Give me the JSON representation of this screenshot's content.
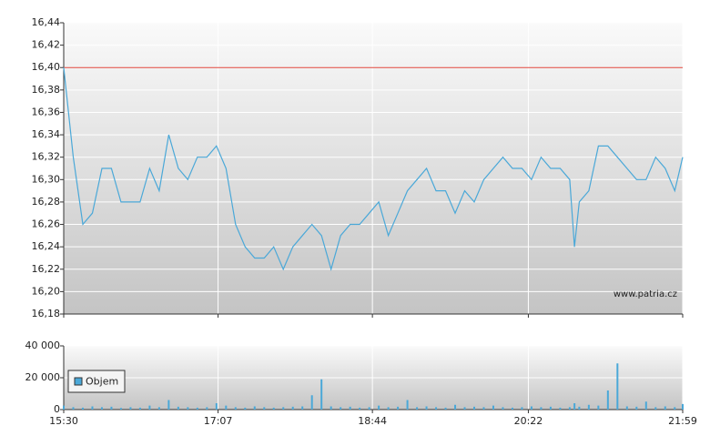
{
  "chart_data": [
    {
      "type": "line",
      "x": [
        "15:30",
        "15:36",
        "15:42",
        "15:48",
        "15:54",
        "16:00",
        "16:06",
        "16:12",
        "16:18",
        "16:24",
        "16:30",
        "16:36",
        "16:42",
        "16:48",
        "16:54",
        "17:00",
        "17:06",
        "17:12",
        "17:18",
        "17:24",
        "17:30",
        "17:36",
        "17:42",
        "17:48",
        "17:54",
        "18:00",
        "18:06",
        "18:12",
        "18:18",
        "18:24",
        "18:30",
        "18:36",
        "18:42",
        "18:48",
        "18:54",
        "19:00",
        "19:06",
        "19:12",
        "19:18",
        "19:24",
        "19:30",
        "19:36",
        "19:42",
        "19:48",
        "19:54",
        "20:00",
        "20:06",
        "20:12",
        "20:18",
        "20:24",
        "20:30",
        "20:36",
        "20:42",
        "20:48",
        "20:51",
        "20:54",
        "21:00",
        "21:06",
        "21:12",
        "21:18",
        "21:24",
        "21:30",
        "21:36",
        "21:42",
        "21:48",
        "21:54",
        "21:59"
      ],
      "series": [
        {
          "color": "#4aa8d8",
          "values": [
            16.4,
            16.32,
            16.26,
            16.27,
            16.31,
            16.31,
            16.28,
            16.28,
            16.28,
            16.31,
            16.29,
            16.34,
            16.31,
            16.3,
            16.32,
            16.32,
            16.33,
            16.31,
            16.26,
            16.24,
            16.23,
            16.23,
            16.24,
            16.22,
            16.24,
            16.25,
            16.26,
            16.25,
            16.22,
            16.25,
            16.26,
            16.26,
            16.27,
            16.28,
            16.25,
            16.27,
            16.29,
            16.3,
            16.31,
            16.29,
            16.29,
            16.27,
            16.29,
            16.28,
            16.3,
            16.31,
            16.32,
            16.31,
            16.31,
            16.3,
            16.32,
            16.31,
            16.31,
            16.3,
            16.24,
            16.28,
            16.29,
            16.33,
            16.33,
            16.32,
            16.31,
            16.3,
            16.3,
            16.32,
            16.31,
            16.29,
            16.32
          ]
        }
      ],
      "reference_line": {
        "value": 16.4,
        "color": "#e0463a"
      },
      "xlim": [
        "15:30",
        "21:59"
      ],
      "xticks": [
        "15:30",
        "17:07",
        "18:44",
        "20:22",
        "21:59"
      ],
      "ylim": [
        16.18,
        16.44
      ],
      "yticks": [
        {
          "value": 16.18,
          "label": "16,18"
        },
        {
          "value": 16.2,
          "label": "16,20"
        },
        {
          "value": 16.22,
          "label": "16,22"
        },
        {
          "value": 16.24,
          "label": "16,24"
        },
        {
          "value": 16.26,
          "label": "16,26"
        },
        {
          "value": 16.28,
          "label": "16,28"
        },
        {
          "value": 16.3,
          "label": "16,30"
        },
        {
          "value": 16.32,
          "label": "16,32"
        },
        {
          "value": 16.34,
          "label": "16,34"
        },
        {
          "value": 16.36,
          "label": "16,36"
        },
        {
          "value": 16.38,
          "label": "16,38"
        },
        {
          "value": 16.4,
          "label": "16,40"
        },
        {
          "value": 16.42,
          "label": "16,42"
        },
        {
          "value": 16.44,
          "label": "16,44"
        }
      ],
      "grid": true,
      "annotation": "www.patria.cz"
    },
    {
      "type": "bar",
      "x": [
        "15:30",
        "15:36",
        "15:42",
        "15:48",
        "15:54",
        "16:00",
        "16:06",
        "16:12",
        "16:18",
        "16:24",
        "16:30",
        "16:36",
        "16:42",
        "16:48",
        "16:54",
        "17:00",
        "17:06",
        "17:12",
        "17:18",
        "17:24",
        "17:30",
        "17:36",
        "17:42",
        "17:48",
        "17:54",
        "18:00",
        "18:06",
        "18:12",
        "18:18",
        "18:24",
        "18:30",
        "18:36",
        "18:42",
        "18:48",
        "18:54",
        "19:00",
        "19:06",
        "19:12",
        "19:18",
        "19:24",
        "19:30",
        "19:36",
        "19:42",
        "19:48",
        "19:54",
        "20:00",
        "20:06",
        "20:12",
        "20:18",
        "20:24",
        "20:30",
        "20:36",
        "20:42",
        "20:48",
        "20:51",
        "20:54",
        "21:00",
        "21:06",
        "21:12",
        "21:18",
        "21:24",
        "21:30",
        "21:36",
        "21:42",
        "21:48",
        "21:54",
        "21:59"
      ],
      "series": [
        {
          "name": "Objem",
          "color": "#4aa8d8",
          "values": [
            2500,
            1500,
            1200,
            2000,
            1500,
            1800,
            1000,
            1500,
            1200,
            2500,
            1500,
            6000,
            1800,
            1500,
            1200,
            1500,
            4000,
            2500,
            1500,
            1200,
            2000,
            1500,
            1200,
            1500,
            1800,
            2000,
            9000,
            19000,
            2000,
            1500,
            1800,
            1200,
            1500,
            2500,
            1500,
            1800,
            6000,
            1500,
            2000,
            1500,
            1200,
            3000,
            1500,
            1800,
            1500,
            2500,
            1500,
            1200,
            1500,
            2000,
            1500,
            1800,
            1200,
            1500,
            4000,
            1800,
            3000,
            2500,
            12000,
            29000,
            2000,
            1800,
            5000,
            1500,
            2000,
            1500,
            3500
          ]
        }
      ],
      "xlim": [
        "15:30",
        "21:59"
      ],
      "xticks": [
        "15:30",
        "17:07",
        "18:44",
        "20:22",
        "21:59"
      ],
      "ylim": [
        0,
        40000
      ],
      "yticks": [
        0,
        {
          "value": 20000,
          "label": "20 000"
        },
        {
          "value": 40000,
          "label": "40 000"
        }
      ],
      "grid": true,
      "legend": "upper-left"
    }
  ]
}
